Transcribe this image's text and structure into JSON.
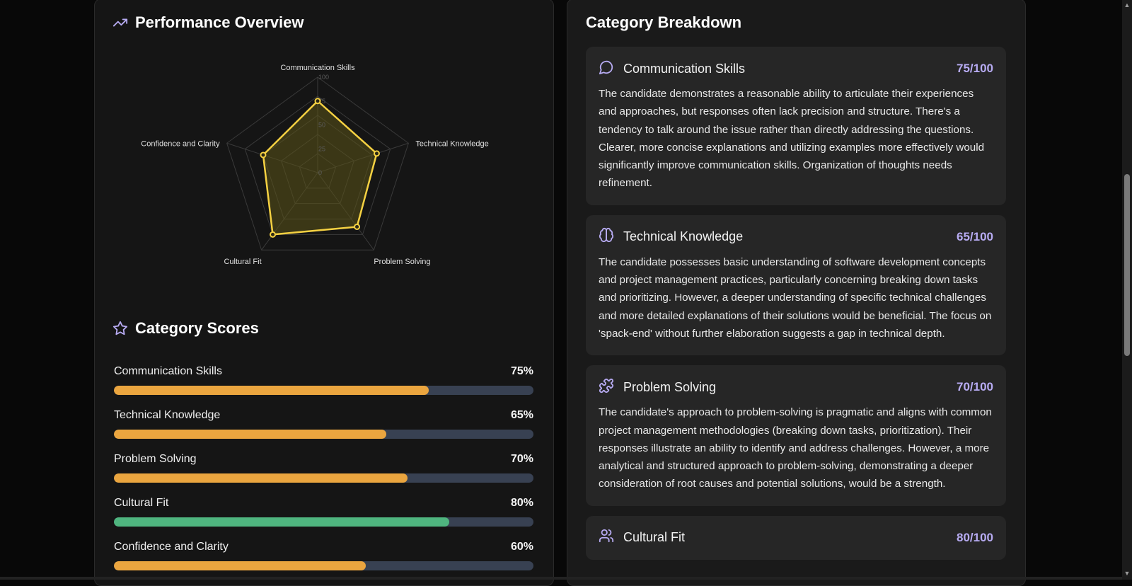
{
  "performance": {
    "title": "Performance Overview",
    "icon": "trending-up-icon",
    "radar": {
      "axes": [
        "Communication Skills",
        "Technical Knowledge",
        "Problem Solving",
        "Cultural Fit",
        "Confidence and Clarity"
      ],
      "values": [
        75,
        65,
        70,
        80,
        60
      ],
      "ticks": [
        "0",
        "25",
        "50",
        "75",
        "100"
      ],
      "max": 100,
      "stroke_color": "#f5d142",
      "fill_color": "#5b5418"
    }
  },
  "scores": {
    "title": "Category Scores",
    "icon": "star-icon",
    "items": [
      {
        "name": "Communication Skills",
        "pct": "75%",
        "value": 75,
        "color": "#eaa53f"
      },
      {
        "name": "Technical Knowledge",
        "pct": "65%",
        "value": 65,
        "color": "#eaa53f"
      },
      {
        "name": "Problem Solving",
        "pct": "70%",
        "value": 70,
        "color": "#eaa53f"
      },
      {
        "name": "Cultural Fit",
        "pct": "80%",
        "value": 80,
        "color": "#4fb57f"
      },
      {
        "name": "Confidence and Clarity",
        "pct": "60%",
        "value": 60,
        "color": "#eaa53f"
      }
    ]
  },
  "breakdown": {
    "title": "Category Breakdown",
    "cards": [
      {
        "icon": "message-circle-icon",
        "title": "Communication Skills",
        "score": "75/100",
        "text": "The candidate demonstrates a reasonable ability to articulate their experiences and approaches, but responses often lack precision and structure. There's a tendency to talk around the issue rather than directly addressing the questions. Clearer, more concise explanations and utilizing examples more effectively would significantly improve communication skills. Organization of thoughts needs refinement."
      },
      {
        "icon": "brain-icon",
        "title": "Technical Knowledge",
        "score": "65/100",
        "text": "The candidate possesses basic understanding of software development concepts and project management practices, particularly concerning breaking down tasks and prioritizing. However, a deeper understanding of specific technical challenges and more detailed explanations of their solutions would be beneficial. The focus on 'spack-end' without further elaboration suggests a gap in technical depth."
      },
      {
        "icon": "puzzle-icon",
        "title": "Problem Solving",
        "score": "70/100",
        "text": "The candidate's approach to problem-solving is pragmatic and aligns with common project management methodologies (breaking down tasks, prioritization). Their responses illustrate an ability to identify and address challenges. However, a more analytical and structured approach to problem-solving, demonstrating a deeper consideration of root causes and potential solutions, would be a strength."
      },
      {
        "icon": "users-icon",
        "title": "Cultural Fit",
        "score": "80/100",
        "text": ""
      }
    ]
  }
}
